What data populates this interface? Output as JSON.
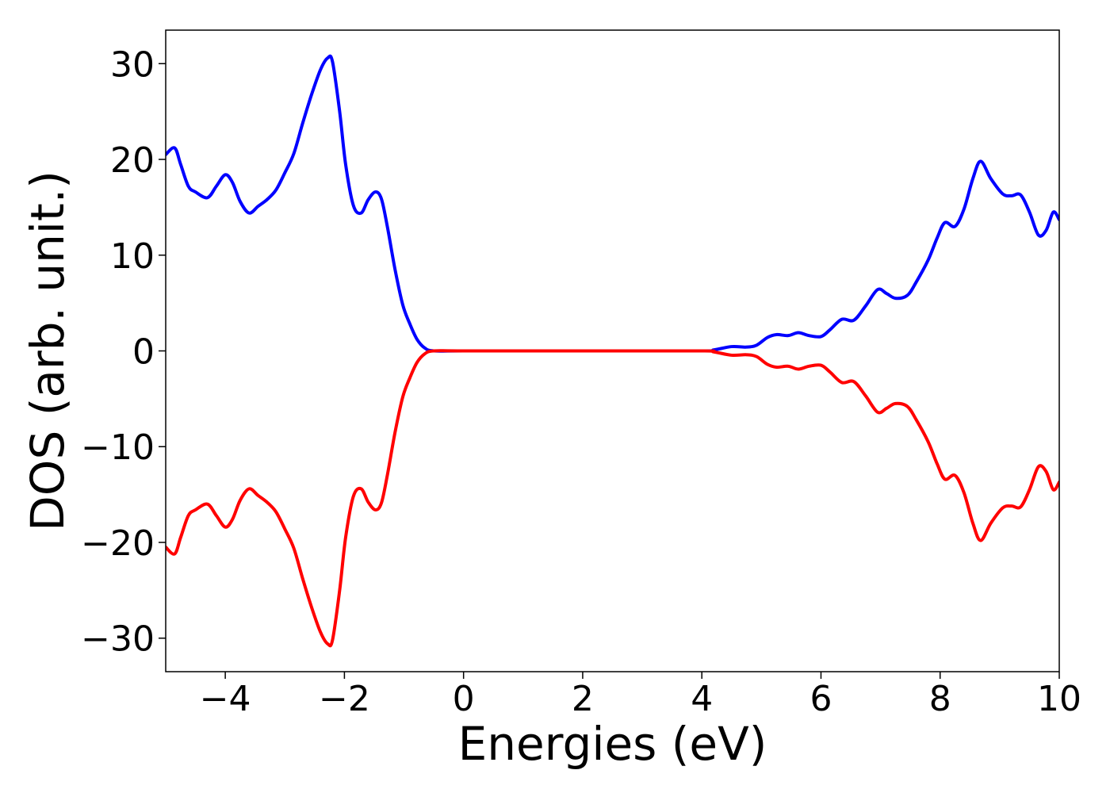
{
  "chart_data": {
    "type": "line",
    "xlabel": "Energies (eV)",
    "ylabel": "DOS (arb. unit.)",
    "xlim": [
      -5,
      10
    ],
    "ylim": [
      -33.5,
      33.5
    ],
    "grid": false,
    "legend": "none",
    "x_ticks": [
      -4,
      -2,
      0,
      2,
      4,
      6,
      8,
      10
    ],
    "y_ticks": [
      -30,
      -20,
      -10,
      0,
      10,
      20,
      30
    ],
    "x_tick_labels": [
      "−4",
      "−2",
      "0",
      "2",
      "4",
      "6",
      "8",
      "10"
    ],
    "y_tick_labels": [
      "−30",
      "−20",
      "−10",
      "0",
      "10",
      "20",
      "30"
    ],
    "series": [
      {
        "color": "#0000ff",
        "points": [
          [
            -5.0,
            20.5
          ],
          [
            -4.85,
            21.2
          ],
          [
            -4.75,
            19.5
          ],
          [
            -4.62,
            17.2
          ],
          [
            -4.5,
            16.6
          ],
          [
            -4.3,
            16.0
          ],
          [
            -4.15,
            17.2
          ],
          [
            -4.0,
            18.4
          ],
          [
            -3.88,
            17.6
          ],
          [
            -3.75,
            15.6
          ],
          [
            -3.6,
            14.4
          ],
          [
            -3.45,
            15.1
          ],
          [
            -3.3,
            15.8
          ],
          [
            -3.15,
            16.8
          ],
          [
            -3.0,
            18.6
          ],
          [
            -2.85,
            20.6
          ],
          [
            -2.7,
            23.8
          ],
          [
            -2.55,
            26.8
          ],
          [
            -2.4,
            29.4
          ],
          [
            -2.28,
            30.6
          ],
          [
            -2.2,
            30.2
          ],
          [
            -2.08,
            25.0
          ],
          [
            -1.98,
            19.5
          ],
          [
            -1.85,
            15.2
          ],
          [
            -1.72,
            14.4
          ],
          [
            -1.6,
            15.8
          ],
          [
            -1.48,
            16.6
          ],
          [
            -1.38,
            15.9
          ],
          [
            -1.28,
            13.0
          ],
          [
            -1.15,
            8.5
          ],
          [
            -1.02,
            4.8
          ],
          [
            -0.9,
            2.8
          ],
          [
            -0.78,
            1.2
          ],
          [
            -0.65,
            0.3
          ],
          [
            -0.5,
            0.0
          ],
          [
            0.0,
            0.0
          ],
          [
            2.0,
            0.0
          ],
          [
            4.0,
            0.0
          ],
          [
            4.2,
            0.1
          ],
          [
            4.5,
            0.45
          ],
          [
            4.75,
            0.4
          ],
          [
            4.92,
            0.6
          ],
          [
            5.1,
            1.4
          ],
          [
            5.25,
            1.7
          ],
          [
            5.45,
            1.6
          ],
          [
            5.62,
            1.9
          ],
          [
            5.8,
            1.6
          ],
          [
            6.0,
            1.5
          ],
          [
            6.15,
            2.2
          ],
          [
            6.35,
            3.3
          ],
          [
            6.55,
            3.2
          ],
          [
            6.75,
            4.7
          ],
          [
            6.95,
            6.4
          ],
          [
            7.1,
            6.0
          ],
          [
            7.25,
            5.5
          ],
          [
            7.45,
            5.8
          ],
          [
            7.6,
            7.2
          ],
          [
            7.8,
            9.5
          ],
          [
            7.95,
            11.8
          ],
          [
            8.08,
            13.4
          ],
          [
            8.25,
            13.0
          ],
          [
            8.4,
            14.8
          ],
          [
            8.55,
            18.0
          ],
          [
            8.68,
            19.8
          ],
          [
            8.85,
            18.0
          ],
          [
            9.05,
            16.4
          ],
          [
            9.2,
            16.2
          ],
          [
            9.35,
            16.3
          ],
          [
            9.5,
            14.5
          ],
          [
            9.65,
            12.1
          ],
          [
            9.78,
            12.6
          ],
          [
            9.9,
            14.5
          ],
          [
            10.0,
            13.7
          ]
        ]
      },
      {
        "color": "#ff0000",
        "points": [
          [
            -5.0,
            -20.5
          ],
          [
            -4.85,
            -21.2
          ],
          [
            -4.75,
            -19.5
          ],
          [
            -4.62,
            -17.2
          ],
          [
            -4.5,
            -16.6
          ],
          [
            -4.3,
            -16.0
          ],
          [
            -4.15,
            -17.2
          ],
          [
            -4.0,
            -18.4
          ],
          [
            -3.88,
            -17.6
          ],
          [
            -3.75,
            -15.6
          ],
          [
            -3.6,
            -14.4
          ],
          [
            -3.45,
            -15.1
          ],
          [
            -3.3,
            -15.8
          ],
          [
            -3.15,
            -16.8
          ],
          [
            -3.0,
            -18.6
          ],
          [
            -2.85,
            -20.6
          ],
          [
            -2.7,
            -23.8
          ],
          [
            -2.55,
            -26.8
          ],
          [
            -2.4,
            -29.4
          ],
          [
            -2.28,
            -30.6
          ],
          [
            -2.2,
            -30.2
          ],
          [
            -2.08,
            -25.0
          ],
          [
            -1.98,
            -19.5
          ],
          [
            -1.85,
            -15.2
          ],
          [
            -1.72,
            -14.4
          ],
          [
            -1.6,
            -15.8
          ],
          [
            -1.48,
            -16.6
          ],
          [
            -1.38,
            -15.9
          ],
          [
            -1.28,
            -13.0
          ],
          [
            -1.15,
            -8.5
          ],
          [
            -1.02,
            -4.8
          ],
          [
            -0.9,
            -2.8
          ],
          [
            -0.78,
            -1.2
          ],
          [
            -0.65,
            -0.3
          ],
          [
            -0.5,
            0.0
          ],
          [
            0.0,
            0.0
          ],
          [
            2.0,
            0.0
          ],
          [
            4.0,
            0.0
          ],
          [
            4.2,
            -0.1
          ],
          [
            4.5,
            -0.45
          ],
          [
            4.75,
            -0.4
          ],
          [
            4.92,
            -0.6
          ],
          [
            5.1,
            -1.4
          ],
          [
            5.25,
            -1.7
          ],
          [
            5.45,
            -1.6
          ],
          [
            5.62,
            -1.9
          ],
          [
            5.8,
            -1.6
          ],
          [
            6.0,
            -1.5
          ],
          [
            6.15,
            -2.2
          ],
          [
            6.35,
            -3.3
          ],
          [
            6.55,
            -3.2
          ],
          [
            6.75,
            -4.7
          ],
          [
            6.95,
            -6.4
          ],
          [
            7.1,
            -6.0
          ],
          [
            7.25,
            -5.5
          ],
          [
            7.45,
            -5.8
          ],
          [
            7.6,
            -7.2
          ],
          [
            7.8,
            -9.5
          ],
          [
            7.95,
            -11.8
          ],
          [
            8.08,
            -13.4
          ],
          [
            8.25,
            -13.0
          ],
          [
            8.4,
            -14.8
          ],
          [
            8.55,
            -18.0
          ],
          [
            8.68,
            -19.8
          ],
          [
            8.85,
            -18.0
          ],
          [
            9.05,
            -16.4
          ],
          [
            9.2,
            -16.2
          ],
          [
            9.35,
            -16.3
          ],
          [
            9.5,
            -14.5
          ],
          [
            9.65,
            -12.1
          ],
          [
            9.78,
            -12.6
          ],
          [
            9.9,
            -14.5
          ],
          [
            10.0,
            -13.7
          ]
        ]
      }
    ]
  }
}
